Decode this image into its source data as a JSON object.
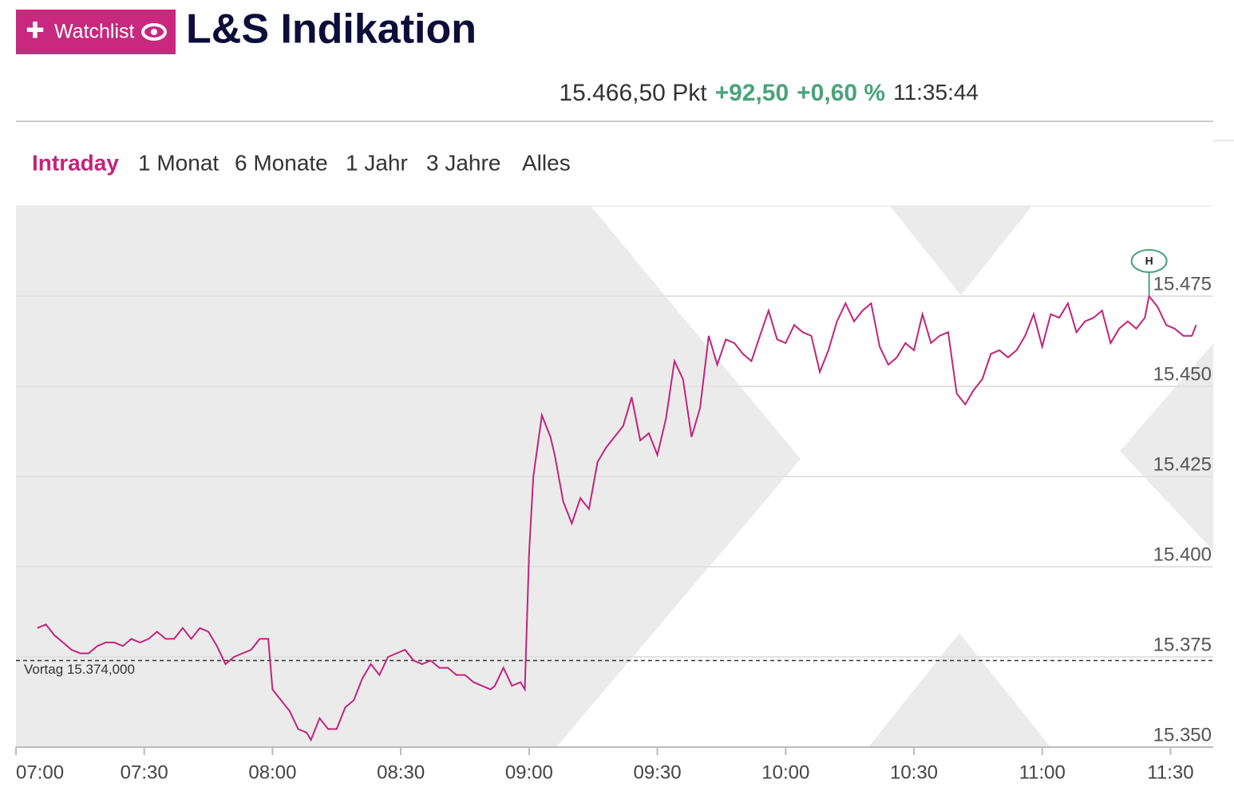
{
  "header": {
    "button": "Watchlist",
    "title": "L&S Indikation",
    "price": "15.466,50 Pkt",
    "change": "+92,50",
    "change_pct": "+0,60 %",
    "time": "11:35:44"
  },
  "tabs": [
    "Intraday",
    "1 Monat",
    "6 Monate",
    "1 Jahr",
    "3 Jahre",
    "Alles"
  ],
  "chart_data": {
    "type": "line",
    "color": "#c2247a",
    "x": [
      "07:05",
      "07:07",
      "07:09",
      "07:11",
      "07:13",
      "07:15",
      "07:17",
      "07:19",
      "07:21",
      "07:23",
      "07:25",
      "07:27",
      "07:29",
      "07:31",
      "07:33",
      "07:35",
      "07:37",
      "07:39",
      "07:41",
      "07:43",
      "07:45",
      "07:47",
      "07:49",
      "07:51",
      "07:53",
      "07:55",
      "07:57",
      "07:59",
      "08:00",
      "08:02",
      "08:04",
      "08:06",
      "08:08",
      "08:09",
      "08:11",
      "08:13",
      "08:15",
      "08:17",
      "08:19",
      "08:21",
      "08:23",
      "08:25",
      "08:27",
      "08:29",
      "08:31",
      "08:33",
      "08:35",
      "08:37",
      "08:39",
      "08:41",
      "08:43",
      "08:45",
      "08:47",
      "08:49",
      "08:51",
      "08:52",
      "08:54",
      "08:56",
      "08:58",
      "08:59",
      "09:00",
      "09:01",
      "09:03",
      "09:05",
      "09:06",
      "09:08",
      "09:10",
      "09:12",
      "09:14",
      "09:16",
      "09:18",
      "09:20",
      "09:22",
      "09:24",
      "09:26",
      "09:28",
      "09:30",
      "09:32",
      "09:34",
      "09:36",
      "09:38",
      "09:40",
      "09:42",
      "09:44",
      "09:46",
      "09:48",
      "09:50",
      "09:52",
      "09:54",
      "09:56",
      "09:58",
      "10:00",
      "10:02",
      "10:04",
      "10:06",
      "10:08",
      "10:10",
      "10:12",
      "10:14",
      "10:16",
      "10:18",
      "10:20",
      "10:22",
      "10:24",
      "10:26",
      "10:28",
      "10:30",
      "10:32",
      "10:34",
      "10:36",
      "10:38",
      "10:40",
      "10:42",
      "10:44",
      "10:46",
      "10:48",
      "10:50",
      "10:52",
      "10:54",
      "10:56",
      "10:58",
      "11:00",
      "11:02",
      "11:04",
      "11:06",
      "11:08",
      "11:10",
      "11:12",
      "11:14",
      "11:16",
      "11:18",
      "11:20",
      "11:22",
      "11:24",
      "11:25",
      "11:27",
      "11:29",
      "11:31",
      "11:33",
      "11:35",
      "11:36"
    ],
    "values": [
      15383,
      15384,
      15381,
      15379,
      15377,
      15376,
      15376,
      15378,
      15379,
      15379,
      15378,
      15380,
      15379,
      15380,
      15382,
      15380,
      15380,
      15383,
      15380,
      15383,
      15382,
      15378,
      15373,
      15375,
      15376,
      15377,
      15380,
      15380,
      15366,
      15363,
      15360,
      15355,
      15354,
      15352,
      15358,
      15355,
      15355,
      15361,
      15363,
      15369,
      15373,
      15370,
      15375,
      15376,
      15377,
      15374,
      15373,
      15374,
      15372,
      15372,
      15370,
      15370,
      15368,
      15367,
      15366,
      15367,
      15372,
      15367,
      15368,
      15366,
      15404,
      15425,
      15442,
      15436,
      15431,
      15418,
      15412,
      15419,
      15416,
      15429,
      15433,
      15436,
      15439,
      15447,
      15435,
      15437,
      15431,
      15441,
      15457,
      15452,
      15436,
      15444,
      15464,
      15456,
      15463,
      15462,
      15459,
      15457,
      15464,
      15471,
      15463,
      15462,
      15467,
      15465,
      15464,
      15454,
      15460,
      15468,
      15473,
      15468,
      15471,
      15473,
      15461,
      15456,
      15458,
      15462,
      15460,
      15470,
      15462,
      15464,
      15465,
      15448,
      15445,
      15449,
      15452,
      15459,
      15460,
      15458,
      15460,
      15464,
      15470,
      15461,
      15470,
      15469,
      15473,
      15465,
      15468,
      15469,
      15471,
      15462,
      15466,
      15468,
      15466,
      15469,
      15475,
      15472,
      15467,
      15466,
      15464,
      15464,
      15467
    ],
    "xlim": [
      "07:00",
      "11:40"
    ],
    "xticks": [
      "07:00",
      "07:30",
      "08:00",
      "08:30",
      "09:00",
      "09:30",
      "10:00",
      "10:30",
      "11:00",
      "11:30"
    ],
    "ylim": [
      15350,
      15500
    ],
    "yticks": [
      {
        "value": 15350,
        "label": "15.350"
      },
      {
        "value": 15375,
        "label": "15.375"
      },
      {
        "value": 15400,
        "label": "15.400"
      },
      {
        "value": 15425,
        "label": "15.425"
      },
      {
        "value": 15450,
        "label": "15.450"
      },
      {
        "value": 15475,
        "label": "15.475"
      }
    ],
    "grid": true,
    "reference": {
      "value": 15374,
      "label": "Vortag 15.374,000"
    },
    "high_label": "H"
  }
}
